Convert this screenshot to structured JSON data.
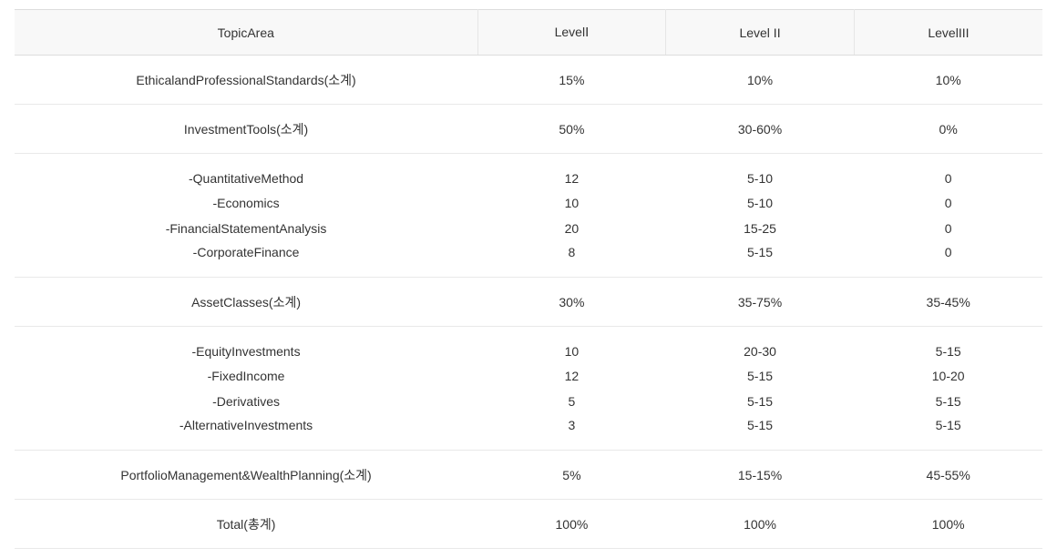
{
  "table": {
    "type": "table",
    "background_color": "#ffffff",
    "header_bg": "#f8f8f8",
    "border_color": "#e9e9e9",
    "header_border_color": "#dddddd",
    "text_color": "#333333",
    "font_size": 14,
    "columns": [
      {
        "key": "topic",
        "label": "TopicArea",
        "width_pct": 45,
        "align": "center"
      },
      {
        "key": "l1",
        "label": "LevelⅠ",
        "width_pct": 18.3,
        "align": "center"
      },
      {
        "key": "l2",
        "label": "Level II",
        "width_pct": 18.3,
        "align": "center"
      },
      {
        "key": "l3",
        "label": "LevelIII",
        "width_pct": 18.3,
        "align": "center"
      }
    ],
    "rows": [
      {
        "kind": "section",
        "topic": "EthicalandProfessionalStandards(소계)",
        "l1": "15%",
        "l2": "10%",
        "l3": "10%"
      },
      {
        "kind": "section",
        "topic": "InvestmentTools(소계)",
        "l1": "50%",
        "l2": "30-60%",
        "l3": "0%"
      },
      {
        "kind": "sub",
        "pos": "first",
        "topic": "-QuantitativeMethod",
        "l1": "12",
        "l2": "5-10",
        "l3": "0"
      },
      {
        "kind": "sub",
        "topic": "-Economics",
        "l1": "10",
        "l2": "5-10",
        "l3": "0"
      },
      {
        "kind": "sub",
        "topic": "-FinancialStatementAnalysis",
        "l1": "20",
        "l2": "15-25",
        "l3": "0"
      },
      {
        "kind": "sub",
        "pos": "last",
        "topic": "-CorporateFinance",
        "l1": "8",
        "l2": "5-15",
        "l3": "0"
      },
      {
        "kind": "section",
        "topic": "AssetClasses(소계)",
        "l1": "30%",
        "l2": "35-75%",
        "l3": "35-45%"
      },
      {
        "kind": "sub",
        "pos": "first",
        "topic": "-EquityInvestments",
        "l1": "10",
        "l2": "20-30",
        "l3": "5-15"
      },
      {
        "kind": "sub",
        "topic": "-FixedIncome",
        "l1": "12",
        "l2": "5-15",
        "l3": "10-20"
      },
      {
        "kind": "sub",
        "topic": "-Derivatives",
        "l1": "5",
        "l2": "5-15",
        "l3": "5-15"
      },
      {
        "kind": "sub",
        "pos": "last",
        "topic": "-AlternativeInvestments",
        "l1": "3",
        "l2": "5-15",
        "l3": "5-15"
      },
      {
        "kind": "section",
        "topic": "PortfolioManagement&WealthPlanning(소계)",
        "l1": "5%",
        "l2": "15-15%",
        "l3": "45-55%"
      },
      {
        "kind": "section",
        "topic": "Total(총계)",
        "l1": "100%",
        "l2": "100%",
        "l3": "100%"
      }
    ]
  }
}
